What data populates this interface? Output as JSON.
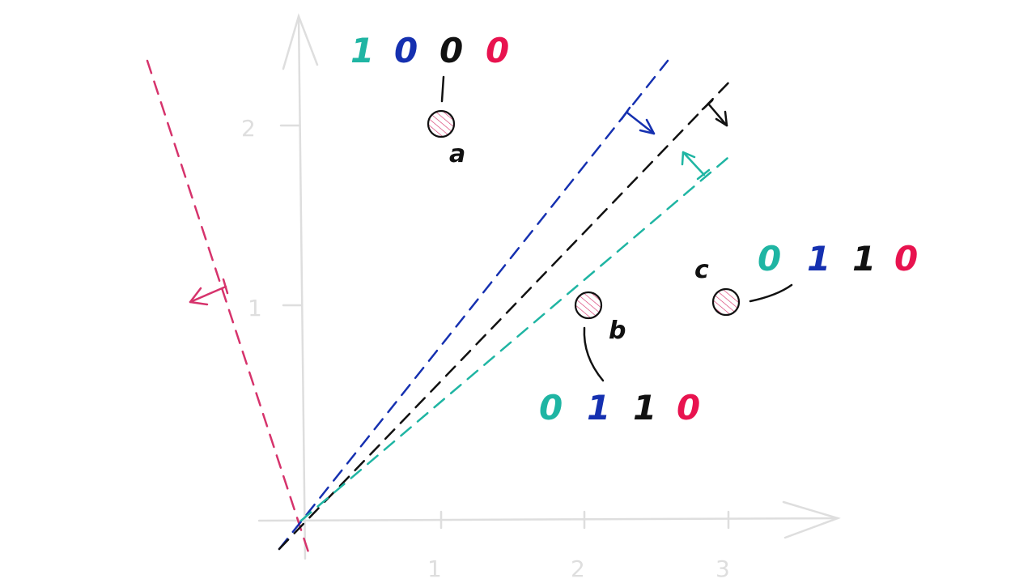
{
  "colors": {
    "teal": "#1fb5a3",
    "blue": "#1530b0",
    "black": "#111111",
    "pink": "#e8134f",
    "red_line": "#d6336c",
    "axis": "#dedede"
  },
  "axes": {
    "x_ticks": [
      "1",
      "2",
      "3"
    ],
    "y_ticks": [
      "1",
      "2"
    ]
  },
  "points": [
    {
      "label": "a",
      "bits": [
        "1",
        "0",
        "0",
        "0"
      ]
    },
    {
      "label": "b",
      "bits": [
        "0",
        "1",
        "1",
        "0"
      ]
    },
    {
      "label": "c",
      "bits": [
        "0",
        "1",
        "1",
        "0"
      ]
    }
  ],
  "lines": [
    {
      "color_key": "red_line",
      "normal": "arrow-icon"
    },
    {
      "color_key": "blue",
      "normal": "arrow-icon"
    },
    {
      "color_key": "black",
      "normal": "arrow-icon"
    },
    {
      "color_key": "teal",
      "normal": "arrow-icon"
    }
  ]
}
